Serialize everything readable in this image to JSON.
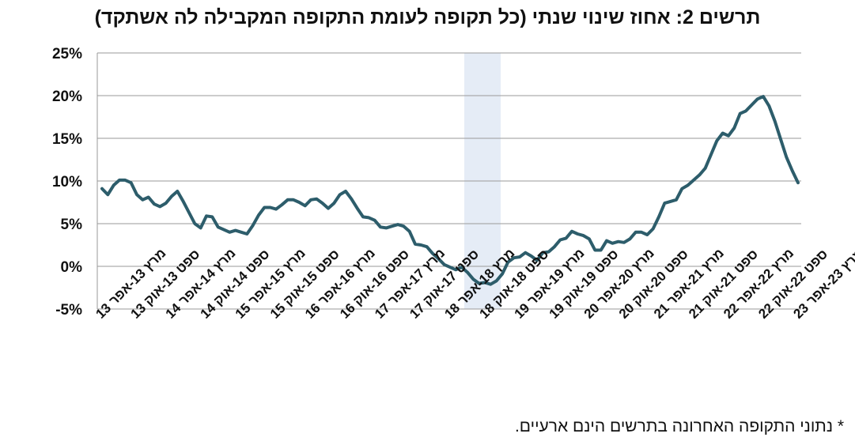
{
  "chart_data": {
    "type": "line",
    "title": "תרשים 2: אחוז שינוי שנתי (כל תקופה לעומת התקופה המקבילה לה אשתקד)",
    "footnote": "* נתוני התקופה האחרונה בתרשים הינם ארעיים.",
    "ylim": [
      -5,
      25
    ],
    "yticks": [
      -5,
      0,
      5,
      10,
      15,
      20,
      25
    ],
    "ytick_labels": [
      "-5%",
      "0%",
      "5%",
      "10%",
      "15%",
      "20%",
      "25%"
    ],
    "grid": true,
    "shaded_period": [
      "ספט 18-נוב 18",
      "ינו 19-מרץ 19"
    ],
    "x_labels": [
      "מרץ 13-אפר 13",
      "ספט 13-אוק 13",
      "מרץ 14-אפר 14",
      "ספט 14-אוק 14",
      "מרץ 15-אפר 15",
      "ספט 15-אוק 15",
      "מרץ 16-אפר 16",
      "ספט 16-אוק 16",
      "מרץ 17-אפר 17",
      "ספט 17-אוק 17",
      "מרץ 18-אפר 18",
      "ספט 18-אוק 18",
      "מרץ 19-אפר 19",
      "ספט 19-אוק 19",
      "מרץ 20-אפר 20",
      "ספט 20-אוק 20",
      "מרץ 21-אפר 21",
      "ספט 21-אוק 21",
      "מרץ 22-אפר 22",
      "ספט 22-אוק 22",
      "*מרץ 23-אפר 23"
    ],
    "series": [
      {
        "color": "#2d5d6b",
        "values": [
          9.1,
          8.4,
          9.5,
          10.1,
          10.1,
          9.8,
          8.4,
          7.8,
          8.1,
          7.3,
          7.0,
          7.4,
          8.2,
          8.8,
          7.6,
          6.3,
          5.0,
          4.5,
          5.9,
          5.8,
          4.6,
          4.3,
          4.0,
          4.2,
          4.0,
          3.8,
          4.8,
          6.0,
          6.9,
          6.9,
          6.7,
          7.2,
          7.8,
          7.8,
          7.5,
          7.1,
          7.8,
          7.9,
          7.4,
          6.8,
          7.4,
          8.4,
          8.8,
          7.9,
          6.8,
          5.8,
          5.7,
          5.4,
          4.6,
          4.5,
          4.7,
          4.9,
          4.7,
          4.1,
          2.6,
          2.5,
          2.3,
          1.5,
          0.9,
          0.2,
          -0.1,
          -0.4,
          -0.1,
          -0.7,
          -1.5,
          -2.0,
          -1.9,
          -2.1,
          -1.7,
          -0.9,
          0.5,
          1.0,
          1.1,
          1.6,
          1.2,
          0.7,
          1.6,
          1.7,
          2.3,
          3.1,
          3.3,
          4.1,
          3.8,
          3.6,
          3.2,
          1.9,
          1.9,
          3.0,
          2.7,
          2.9,
          2.8,
          3.2,
          4.0,
          4.0,
          3.7,
          4.4,
          5.8,
          7.4,
          7.6,
          7.8,
          9.1,
          9.5,
          10.1,
          10.7,
          11.5,
          13.1,
          14.7,
          15.6,
          15.3,
          16.2,
          17.9,
          18.2,
          18.9,
          19.6,
          19.9,
          18.8,
          17.0,
          14.9,
          12.8,
          11.2,
          9.8
        ]
      }
    ]
  }
}
